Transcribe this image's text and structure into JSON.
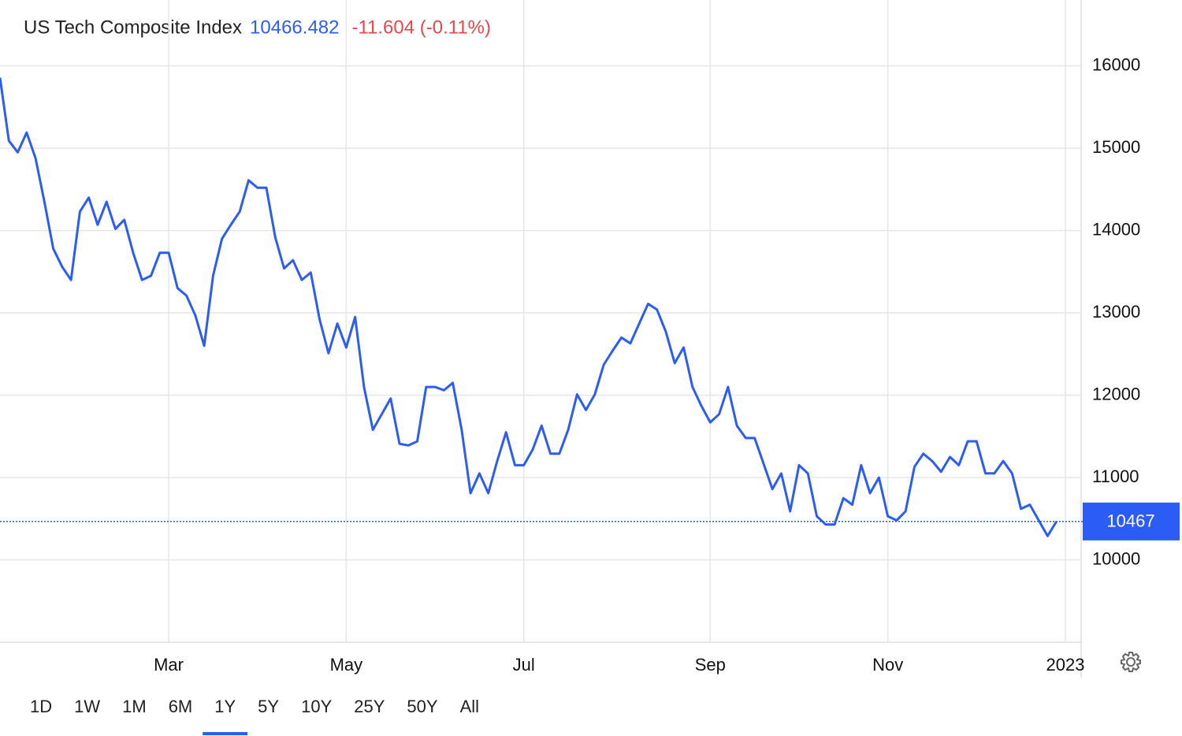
{
  "chart_data": {
    "type": "line",
    "title": "US Tech Composite Index",
    "last": 10466.482,
    "last_label": "10467",
    "change": "-11.604 (-0.11%)",
    "categories": [
      null,
      null,
      null,
      null,
      null,
      null,
      null,
      null,
      null,
      null,
      null,
      null,
      null,
      null,
      null,
      null,
      null,
      null,
      null,
      "Mar",
      null,
      null,
      null,
      null,
      null,
      null,
      null,
      null,
      null,
      null,
      null,
      null,
      null,
      null,
      null,
      null,
      null,
      null,
      null,
      "May",
      null,
      null,
      null,
      null,
      null,
      null,
      null,
      null,
      null,
      null,
      null,
      null,
      null,
      null,
      null,
      null,
      null,
      null,
      null,
      "Jul",
      null,
      null,
      null,
      null,
      null,
      null,
      null,
      null,
      null,
      null,
      null,
      null,
      null,
      null,
      null,
      null,
      null,
      null,
      null,
      null,
      "Sep",
      null,
      null,
      null,
      null,
      null,
      null,
      null,
      null,
      null,
      null,
      null,
      null,
      null,
      null,
      null,
      null,
      null,
      null,
      null,
      "Nov",
      null,
      null,
      null,
      null,
      null,
      null,
      null,
      null,
      null,
      null,
      null,
      null,
      null,
      null,
      null,
      null,
      null,
      null,
      null,
      "2023"
    ],
    "series": [
      {
        "name": "US Tech Composite Index",
        "color": "#2b5cf6",
        "values": [
          15856,
          15090,
          14950,
          15190,
          14880,
          14350,
          13780,
          13560,
          13400,
          14230,
          14400,
          14070,
          14350,
          14020,
          14130,
          13730,
          13400,
          13450,
          13730,
          13730,
          13300,
          13210,
          12970,
          12600,
          13450,
          13900,
          14070,
          14230,
          14610,
          14520,
          14520,
          13920,
          13540,
          13640,
          13400,
          13490,
          12920,
          12510,
          12870,
          12580,
          12950,
          12100,
          11580,
          11770,
          11960,
          11410,
          11390,
          11440,
          12100,
          12100,
          12060,
          12150,
          11580,
          10810,
          11050,
          10810,
          11200,
          11550,
          11150,
          11150,
          11340,
          11630,
          11290,
          11290,
          11580,
          12010,
          11820,
          12010,
          12370,
          12540,
          12700,
          12630,
          12870,
          13110,
          13040,
          12770,
          12390,
          12580,
          12100,
          11870,
          11670,
          11770,
          12100,
          11630,
          11480,
          11480,
          11170,
          10860,
          11050,
          10590,
          11150,
          11050,
          10530,
          10430,
          10430,
          10750,
          10670,
          11150,
          10810,
          11000,
          10530,
          10480,
          10590,
          11130,
          11290,
          11200,
          11070,
          11250,
          11150,
          11440,
          11440,
          11050,
          11050,
          11200,
          11050,
          10620,
          10670,
          10480,
          10290,
          10466.482,
          null
        ]
      }
    ],
    "ylim": [
      9000,
      16800
    ],
    "yticks": [
      10000,
      11000,
      12000,
      13000,
      14000,
      15000,
      16000
    ],
    "grid": true,
    "ranges": [
      "1D",
      "1W",
      "1M",
      "6M",
      "1Y",
      "5Y",
      "10Y",
      "25Y",
      "50Y",
      "All"
    ],
    "active_range": "1Y"
  }
}
